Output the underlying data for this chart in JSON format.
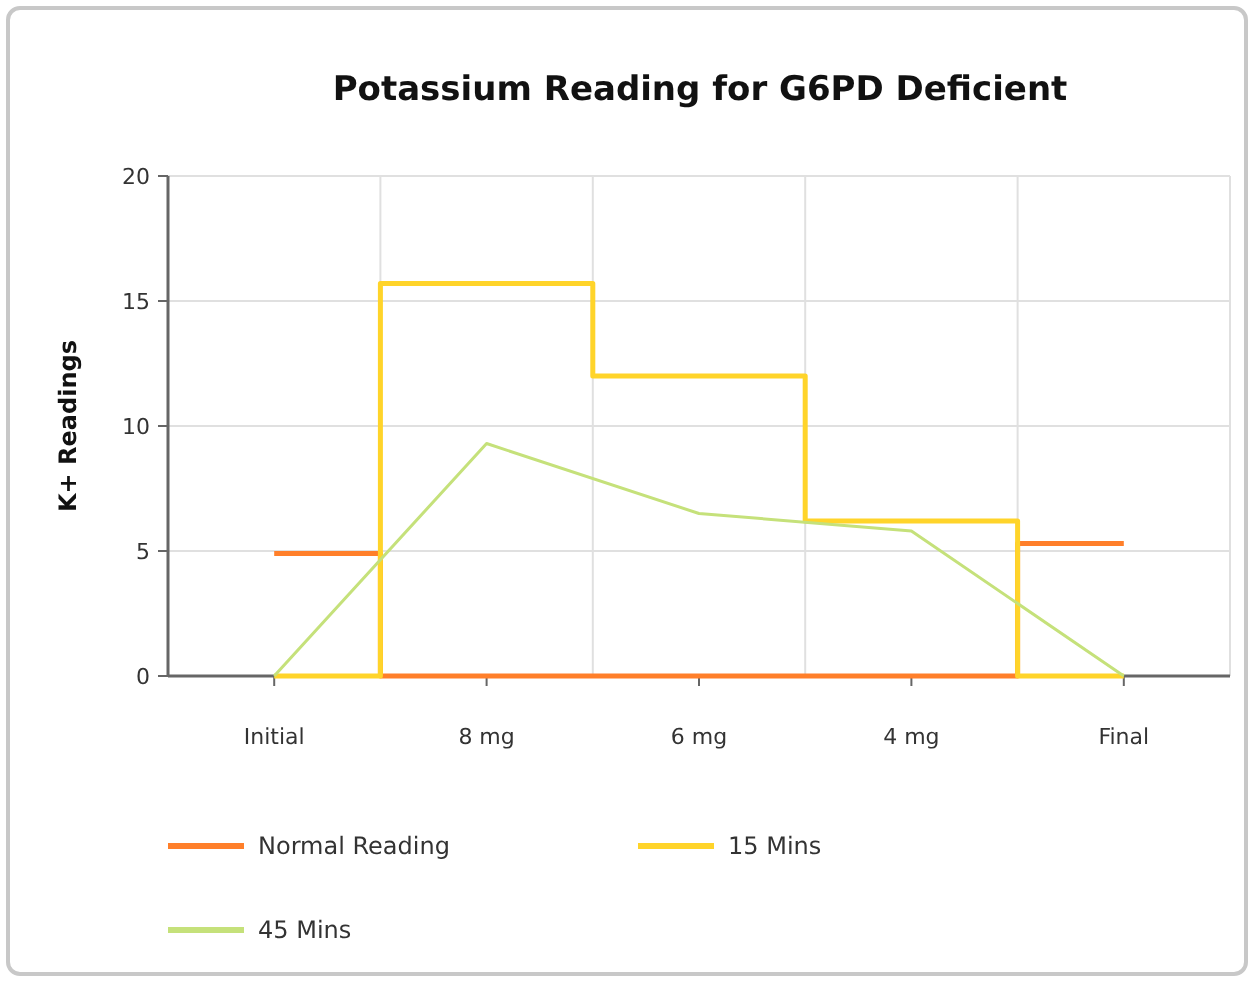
{
  "chart_data": {
    "type": "line",
    "title": "Potassium Reading for G6PD Deficient",
    "ylabel": "K+ Readings",
    "categories": [
      "Initial",
      "8 mg",
      "6 mg",
      "4 mg",
      "Final"
    ],
    "series": [
      {
        "name": "Normal Reading",
        "type": "step",
        "color": "#ff7f2a",
        "values": [
          4.9,
          0,
          0,
          0,
          5.3
        ]
      },
      {
        "name": "15 Mins",
        "type": "step",
        "color": "#ffd42a",
        "values": [
          0,
          15.7,
          12.0,
          6.2,
          0
        ]
      },
      {
        "name": "45 Mins",
        "color": "#c5e17a",
        "values": [
          0,
          9.3,
          6.5,
          5.8,
          0
        ]
      }
    ],
    "ylim": [
      0,
      20
    ],
    "yticks": [
      0,
      5,
      10,
      15,
      20
    ],
    "grid": true,
    "legend": "bottom",
    "marker": "none"
  }
}
